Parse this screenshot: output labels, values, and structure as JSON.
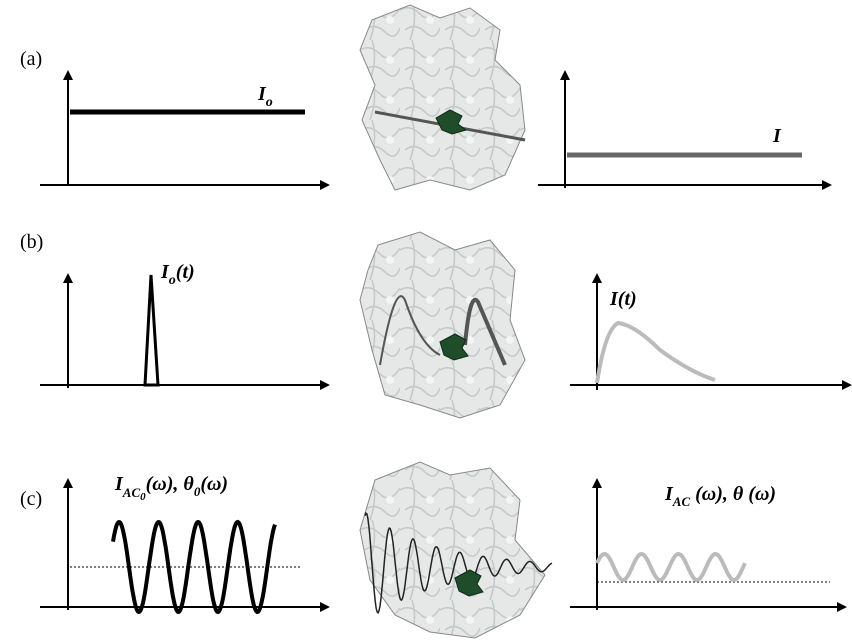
{
  "panels": [
    {
      "tag": "(a)",
      "input": {
        "main": "I",
        "sub": "o"
      },
      "output": {
        "main": "I"
      }
    },
    {
      "tag": "(b)",
      "input": {
        "main": "I",
        "sub": "o",
        "rest": "(t)"
      },
      "output": {
        "main": "I(t)"
      }
    },
    {
      "tag": "(c)",
      "input": {
        "main": "I",
        "sub": "AC",
        "subsub": "0",
        "rest": "(ω), θ",
        "sub2": "0",
        "rest2": "(ω)"
      },
      "output": {
        "main": "I",
        "sub": "AC",
        "rest": " (ω), θ (ω)"
      }
    }
  ]
}
